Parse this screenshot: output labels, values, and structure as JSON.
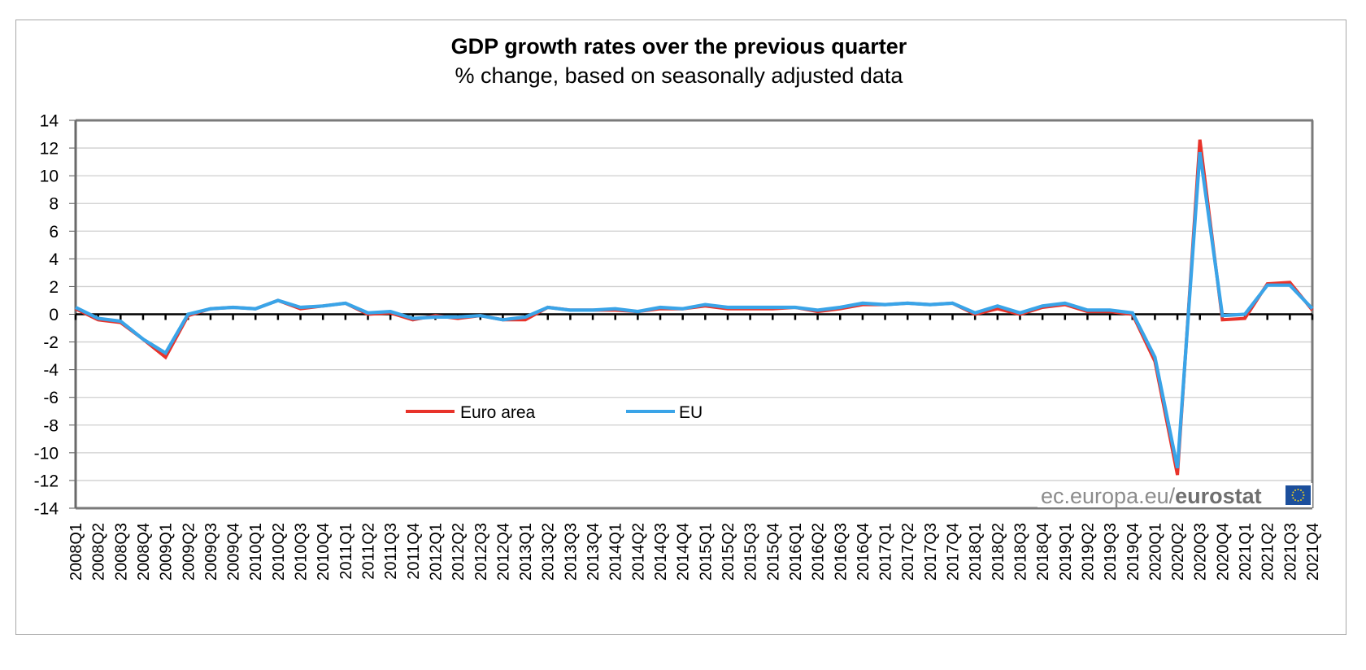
{
  "chart_data": {
    "type": "line",
    "title": "GDP growth rates over the previous quarter",
    "subtitle": "% change, based on seasonally adjusted data",
    "xlabel": "",
    "ylabel": "",
    "ylim": [
      -14,
      14
    ],
    "yticks": [
      14,
      12,
      10,
      8,
      6,
      4,
      2,
      0,
      -2,
      -4,
      -6,
      -8,
      -10,
      -12,
      -14
    ],
    "grid": true,
    "legend_position": "center-left",
    "categories": [
      "2008Q1",
      "2008Q2",
      "2008Q3",
      "2008Q4",
      "2009Q1",
      "2009Q2",
      "2009Q3",
      "2009Q4",
      "2010Q1",
      "2010Q2",
      "2010Q3",
      "2010Q4",
      "2011Q1",
      "2011Q2",
      "2011Q3",
      "2011Q4",
      "2012Q1",
      "2012Q2",
      "2012Q3",
      "2012Q4",
      "2013Q1",
      "2013Q2",
      "2013Q3",
      "2013Q4",
      "2014Q1",
      "2014Q2",
      "2014Q3",
      "2014Q4",
      "2015Q1",
      "2015Q2",
      "2015Q3",
      "2015Q4",
      "2016Q1",
      "2016Q2",
      "2016Q3",
      "2016Q4",
      "2017Q1",
      "2017Q2",
      "2017Q3",
      "2017Q4",
      "2018Q1",
      "2018Q2",
      "2018Q3",
      "2018Q4",
      "2019Q1",
      "2019Q2",
      "2019Q3",
      "2019Q4",
      "2020Q1",
      "2020Q2",
      "2020Q3",
      "2020Q4",
      "2021Q1",
      "2021Q2",
      "2021Q3",
      "2021Q4"
    ],
    "series": [
      {
        "name": "Euro area",
        "color": "#e8332a",
        "values": [
          0.4,
          -0.4,
          -0.6,
          -1.8,
          -3.1,
          -0.1,
          0.4,
          0.5,
          0.4,
          1.0,
          0.4,
          0.6,
          0.8,
          0.0,
          0.1,
          -0.4,
          -0.1,
          -0.3,
          -0.1,
          -0.4,
          -0.4,
          0.5,
          0.3,
          0.3,
          0.3,
          0.2,
          0.4,
          0.4,
          0.6,
          0.4,
          0.4,
          0.4,
          0.5,
          0.2,
          0.4,
          0.7,
          0.7,
          0.8,
          0.7,
          0.8,
          0.0,
          0.4,
          0.0,
          0.5,
          0.7,
          0.2,
          0.2,
          0.0,
          -3.4,
          -11.6,
          12.6,
          -0.4,
          -0.3,
          2.2,
          2.3,
          0.3
        ]
      },
      {
        "name": "EU",
        "color": "#3aa4e8",
        "values": [
          0.5,
          -0.3,
          -0.5,
          -1.8,
          -2.8,
          0.0,
          0.4,
          0.5,
          0.4,
          1.0,
          0.5,
          0.6,
          0.8,
          0.1,
          0.2,
          -0.3,
          -0.2,
          -0.2,
          -0.1,
          -0.4,
          -0.2,
          0.5,
          0.3,
          0.3,
          0.4,
          0.2,
          0.5,
          0.4,
          0.7,
          0.5,
          0.5,
          0.5,
          0.5,
          0.3,
          0.5,
          0.8,
          0.7,
          0.8,
          0.7,
          0.8,
          0.1,
          0.6,
          0.1,
          0.6,
          0.8,
          0.3,
          0.3,
          0.1,
          -3.1,
          -11.1,
          11.7,
          -0.1,
          0.0,
          2.1,
          2.1,
          0.4
        ]
      }
    ],
    "watermark": {
      "prefix": "ec.europa.eu/",
      "brand": "eurostat",
      "icon": "eu-flag-icon"
    }
  }
}
